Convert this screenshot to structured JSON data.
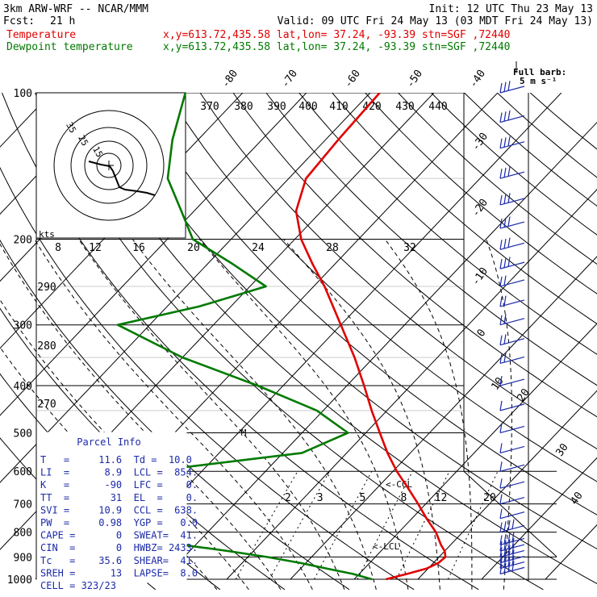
{
  "header": {
    "model": "3km ARW-WRF -- NCAR/MMM",
    "init": "Init: 12 UTC Thu 23 May 13",
    "fcst_label": "Fcst:",
    "fcst_value": "21 h",
    "valid": "Valid: 09 UTC Fri 24 May 13 (03 MDT Fri 24 May 13)"
  },
  "legend": [
    {
      "label": "Temperature",
      "info": "x,y=613.72,435.58   lat,lon= 37.24, -93.39  stn=SGF ,72440",
      "color": "#e00000"
    },
    {
      "label": "Dewpoint temperature",
      "info": "x,y=613.72,435.58   lat,lon= 37.24, -93.39  stn=SGF ,72440",
      "color": "#007a00"
    }
  ],
  "wind_scale": {
    "title": "Full barb:",
    "value": "5 m s⁻¹"
  },
  "chart_data": {
    "type": "line",
    "diagram": "skew-T log-p",
    "y_axis": {
      "label": "",
      "scale": "log",
      "range": [
        1000,
        100
      ],
      "ticks": [
        100,
        200,
        300,
        400,
        500,
        600,
        700,
        800,
        900,
        1000
      ]
    },
    "isotherm_labels": [
      "-80",
      "-70",
      "-60",
      "-50",
      "-40",
      "-30",
      "-20",
      "-10",
      "0",
      "10",
      "20",
      "30",
      "40"
    ],
    "isotherm_values": [
      -80,
      -70,
      -60,
      -50,
      -40,
      -30,
      -20,
      -10,
      0,
      10,
      20,
      30,
      40
    ],
    "theta_labels": [
      "370",
      "380",
      "390",
      "400",
      "410",
      "420",
      "430",
      "440"
    ],
    "theta_left_labels": [
      "290",
      "280",
      "270"
    ],
    "hodograph_speed_labels": [
      "8",
      "12",
      "16",
      "20",
      "24",
      "28",
      "32"
    ],
    "mixing_ratio_labels": [
      "2",
      "3",
      "5",
      "8",
      "12",
      "20"
    ],
    "markers": [
      "<-CCL",
      "<-LCL",
      "M"
    ],
    "series": [
      {
        "name": "Temperature",
        "color": "#e00000",
        "points": [
          [
            1000,
            15.0
          ],
          [
            975,
            17.5
          ],
          [
            950,
            19.8
          ],
          [
            925,
            20.8
          ],
          [
            900,
            21.0
          ],
          [
            875,
            20.0
          ],
          [
            850,
            18.5
          ],
          [
            800,
            15.8
          ],
          [
            750,
            12.3
          ],
          [
            700,
            8.8
          ],
          [
            650,
            4.9
          ],
          [
            600,
            0.6
          ],
          [
            550,
            -3.6
          ],
          [
            500,
            -7.8
          ],
          [
            450,
            -12.4
          ],
          [
            400,
            -17.3
          ],
          [
            350,
            -23.0
          ],
          [
            300,
            -30.0
          ],
          [
            250,
            -38.3
          ],
          [
            225,
            -43.5
          ],
          [
            200,
            -49.0
          ],
          [
            175,
            -54.0
          ],
          [
            150,
            -57.3
          ],
          [
            125,
            -58.0
          ],
          [
            110,
            -58.3
          ],
          [
            100,
            -58.5
          ]
        ]
      },
      {
        "name": "Dewpoint temperature",
        "color": "#007a00",
        "points": [
          [
            1000,
            12.8
          ],
          [
            975,
            9.0
          ],
          [
            950,
            4.0
          ],
          [
            925,
            -1.0
          ],
          [
            900,
            -7.0
          ],
          [
            875,
            -14.0
          ],
          [
            850,
            -22.0
          ],
          [
            800,
            -35.0
          ],
          [
            700,
            -43.0
          ],
          [
            600,
            -38.0
          ],
          [
            550,
            -17.0
          ],
          [
            500,
            -12.8
          ],
          [
            450,
            -21.0
          ],
          [
            400,
            -34.0
          ],
          [
            350,
            -50.0
          ],
          [
            300,
            -65.0
          ],
          [
            275,
            -55.0
          ],
          [
            250,
            -47.5
          ],
          [
            225,
            -56.0
          ],
          [
            200,
            -66.0
          ],
          [
            175,
            -72.0
          ],
          [
            150,
            -79.0
          ],
          [
            125,
            -84.0
          ],
          [
            100,
            -89.0
          ]
        ]
      }
    ]
  },
  "hodograph": {
    "units": "kts",
    "ring_labels": [
      "15",
      "25",
      "35"
    ]
  },
  "parcel_info": {
    "title": "Parcel Info",
    "rows": [
      "T   =     11.6  Td =  10.0",
      "LI  =      8.9  LCL =  854.",
      "K   =      -90  LFC =    0.",
      "TT  =       31  EL  =    0.",
      "SVI =     10.9  CCL =  638.",
      "PW  =     0.98  YGP =   0.0",
      "CAPE =       0  SWEAT=  41.",
      "CIN  =       0  HWBZ= 2433.",
      "Tc   =    35.6  SHEAR=  41.",
      "SREH =      13  LAPSE=  8.0",
      "CELL = 323/23"
    ]
  },
  "colors": {
    "temperature": "#e00000",
    "dewpoint": "#007a00",
    "parcel_text": "#1c2aa8",
    "barbs": "#1c2aa8",
    "grid": "#000000"
  }
}
